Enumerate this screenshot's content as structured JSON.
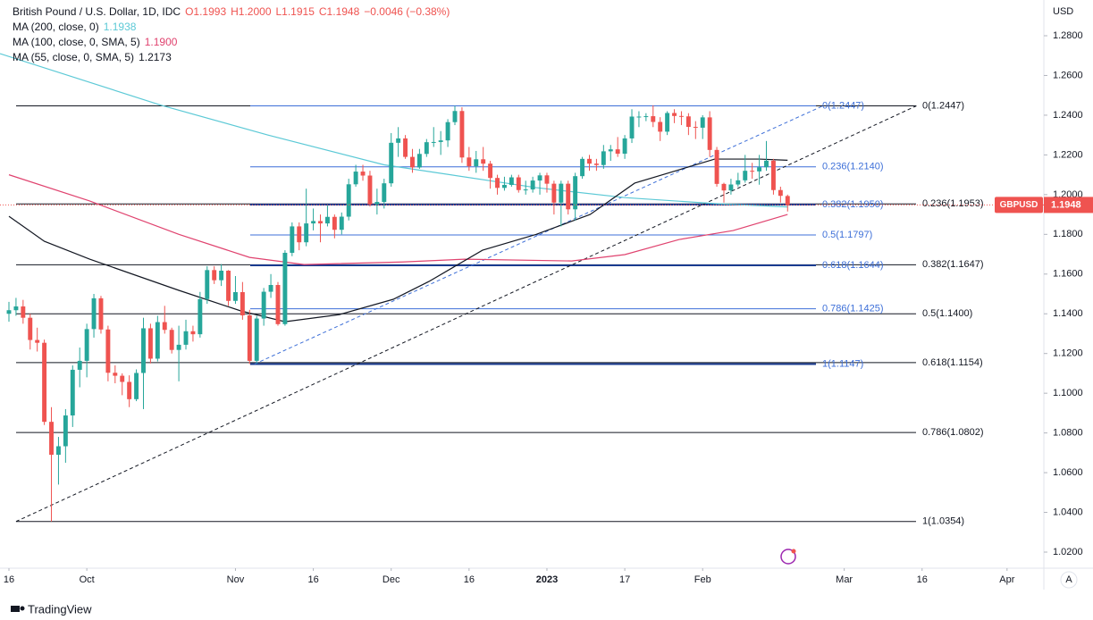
{
  "chart_data": {
    "type": "candlestick",
    "title": "British Pound / U.S. Dollar, 1D, IDC",
    "ohlc_header": [
      "O1.1993",
      "H1.2000",
      "L1.1915",
      "C1.1948",
      "−0.0046 (−0.38%)"
    ],
    "currency": "USD",
    "symbol": "GBPUSD",
    "last_price": 1.1948,
    "brand": "TradingView",
    "scale_button": "A",
    "up_color": "#26a69a",
    "down_color": "#ef5350",
    "xlim": [
      -1.2626,
      146.2
    ],
    "ylim": [
      1.0119,
      1.298
    ],
    "xticks": [
      {
        "value": 0,
        "label": "16"
      },
      {
        "value": 11,
        "label": "Oct"
      },
      {
        "value": 32,
        "label": "Nov"
      },
      {
        "value": 43,
        "label": "16"
      },
      {
        "value": 54,
        "label": "Dec"
      },
      {
        "value": 65,
        "label": "16"
      },
      {
        "value": 76,
        "label": "2023"
      },
      {
        "value": 87,
        "label": "17"
      },
      {
        "value": 98,
        "label": "Feb"
      },
      {
        "value": 118,
        "label": "Mar"
      },
      {
        "value": 129,
        "label": "16"
      },
      {
        "value": 141,
        "label": "Apr"
      }
    ],
    "yticks": [
      {
        "value": 1.28,
        "label": "1.2800"
      },
      {
        "value": 1.26,
        "label": "1.2600"
      },
      {
        "value": 1.24,
        "label": "1.2400"
      },
      {
        "value": 1.22,
        "label": "1.2200"
      },
      {
        "value": 1.2,
        "label": "1.2000"
      },
      {
        "value": 1.18,
        "label": "1.1800"
      },
      {
        "value": 1.16,
        "label": "1.1600"
      },
      {
        "value": 1.14,
        "label": "1.1400"
      },
      {
        "value": 1.12,
        "label": "1.1200"
      },
      {
        "value": 1.1,
        "label": "1.1000"
      },
      {
        "value": 1.08,
        "label": "1.0800"
      },
      {
        "value": 1.06,
        "label": "1.0600"
      },
      {
        "value": 1.04,
        "label": "1.0400"
      },
      {
        "value": 1.02,
        "label": "1.0200"
      }
    ],
    "open": [
      1.14,
      1.1418,
      1.1437,
      1.138,
      1.1268,
      1.1254,
      1.0856,
      1.069,
      1.0733,
      1.0888,
      1.1118,
      1.1163,
      1.1323,
      1.1478,
      1.1321,
      1.1103,
      1.1088,
      1.1057,
      1.097,
      1.1102,
      1.1327,
      1.1174,
      1.1358,
      1.1319,
      1.1218,
      1.1244,
      1.1312,
      1.1297,
      1.1474,
      1.162,
      1.1569,
      1.1617,
      1.1465,
      1.1509,
      1.1392,
      1.1163,
      1.1376,
      1.1511,
      1.1545,
      1.1348,
      1.1707,
      1.184,
      1.176,
      1.1855,
      1.1867,
      1.1855,
      1.1888,
      1.1823,
      1.1889,
      1.2052,
      1.2116,
      1.2096,
      1.1951,
      1.1963,
      1.2057,
      1.2261,
      1.2283,
      1.219,
      1.2137,
      1.2205,
      1.2264,
      1.2265,
      1.2273,
      1.2365,
      1.2421,
      1.2187,
      1.2143,
      1.2178,
      1.2156,
      1.2084,
      1.2034,
      1.2049,
      1.2087,
      1.2023,
      1.2026,
      1.2071,
      1.2097,
      1.2055,
      1.196,
      1.2055,
      1.1926,
      1.2093,
      1.218,
      1.2156,
      1.2149,
      1.2218,
      1.2228,
      1.2206,
      1.2283,
      1.2393,
      1.2393,
      1.2395,
      1.2366,
      1.2317,
      1.2411,
      1.2396,
      1.2394,
      1.2341,
      1.2337,
      1.2389,
      1.2225,
      1.2054,
      1.2021,
      1.2051,
      1.2072,
      1.212,
      1.2117,
      1.2138,
      1.2171,
      1.2023,
      1.1993
    ],
    "high": [
      1.146,
      1.148,
      1.147,
      1.14,
      1.133,
      1.127,
      1.093,
      1.078,
      1.092,
      1.114,
      1.123,
      1.135,
      1.15,
      1.149,
      1.134,
      1.114,
      1.11,
      1.109,
      1.112,
      1.138,
      1.135,
      1.139,
      1.144,
      1.133,
      1.134,
      1.137,
      1.134,
      1.151,
      1.164,
      1.164,
      1.165,
      1.162,
      1.159,
      1.156,
      1.142,
      1.139,
      1.153,
      1.16,
      1.156,
      1.172,
      1.186,
      1.186,
      1.203,
      1.193,
      1.19,
      1.195,
      1.19,
      1.191,
      1.208,
      1.215,
      1.215,
      1.212,
      1.203,
      1.208,
      1.231,
      1.234,
      1.23,
      1.223,
      1.223,
      1.228,
      1.234,
      1.232,
      1.238,
      1.2447,
      1.244,
      1.224,
      1.222,
      1.224,
      1.217,
      1.21,
      1.209,
      1.21,
      1.21,
      1.207,
      1.209,
      1.211,
      1.211,
      1.207,
      1.207,
      1.207,
      1.211,
      1.219,
      1.22,
      1.218,
      1.225,
      1.225,
      1.229,
      1.23,
      1.243,
      1.242,
      1.241,
      1.245,
      1.239,
      1.242,
      1.243,
      1.242,
      1.241,
      1.237,
      1.24,
      1.242,
      1.224,
      1.206,
      1.208,
      1.211,
      1.22,
      1.216,
      1.22,
      1.227,
      1.218,
      1.204,
      1.2
    ],
    "low": [
      1.136,
      1.139,
      1.135,
      1.122,
      1.121,
      1.084,
      1.0354,
      1.054,
      1.065,
      1.083,
      1.103,
      1.108,
      1.128,
      1.13,
      1.106,
      1.105,
      1.099,
      1.093,
      1.096,
      1.092,
      1.115,
      1.116,
      1.13,
      1.12,
      1.106,
      1.122,
      1.126,
      1.128,
      1.145,
      1.155,
      1.154,
      1.144,
      1.145,
      1.137,
      1.1147,
      1.115,
      1.134,
      1.148,
      1.134,
      1.134,
      1.169,
      1.172,
      1.174,
      1.182,
      1.176,
      1.184,
      1.178,
      1.18,
      1.187,
      1.204,
      1.207,
      1.194,
      1.19,
      1.193,
      1.204,
      1.219,
      1.218,
      1.211,
      1.213,
      1.219,
      1.224,
      1.22,
      1.224,
      1.235,
      1.216,
      1.212,
      1.211,
      1.212,
      1.203,
      1.2,
      1.202,
      1.204,
      1.201,
      1.2,
      1.201,
      1.2,
      1.201,
      1.19,
      1.184,
      1.19,
      1.187,
      1.208,
      1.212,
      1.212,
      1.213,
      1.217,
      1.219,
      1.218,
      1.226,
      1.234,
      1.237,
      1.234,
      1.227,
      1.23,
      1.236,
      1.235,
      1.23,
      1.228,
      1.228,
      1.219,
      1.204,
      1.196,
      1.2,
      1.204,
      1.206,
      1.208,
      1.205,
      1.212,
      1.2,
      1.196,
      1.1915
    ],
    "close": [
      1.1418,
      1.1437,
      1.138,
      1.1268,
      1.1254,
      1.0856,
      1.069,
      1.0733,
      1.0888,
      1.1118,
      1.1163,
      1.1323,
      1.1478,
      1.1321,
      1.1103,
      1.1088,
      1.1057,
      1.097,
      1.1102,
      1.1327,
      1.1174,
      1.1358,
      1.1319,
      1.1218,
      1.1244,
      1.1312,
      1.1297,
      1.1474,
      1.162,
      1.1569,
      1.1617,
      1.1465,
      1.1509,
      1.1392,
      1.1163,
      1.1376,
      1.1511,
      1.1545,
      1.1348,
      1.1707,
      1.184,
      1.176,
      1.1855,
      1.1867,
      1.1855,
      1.1888,
      1.1823,
      1.1889,
      1.2052,
      1.2116,
      1.2096,
      1.1951,
      1.1963,
      1.2057,
      1.2261,
      1.2283,
      1.219,
      1.2137,
      1.2205,
      1.2264,
      1.2265,
      1.2273,
      1.2365,
      1.2421,
      1.2187,
      1.2143,
      1.2178,
      1.2156,
      1.2084,
      1.2034,
      1.2049,
      1.2087,
      1.2023,
      1.2026,
      1.2071,
      1.2097,
      1.2055,
      1.196,
      1.2055,
      1.1926,
      1.2093,
      1.218,
      1.2156,
      1.2149,
      1.2218,
      1.2228,
      1.2206,
      1.2283,
      1.2393,
      1.2393,
      1.2395,
      1.2366,
      1.2317,
      1.2411,
      1.2396,
      1.2394,
      1.2341,
      1.2337,
      1.2389,
      1.2225,
      1.2054,
      1.2021,
      1.2051,
      1.2072,
      1.212,
      1.2117,
      1.2138,
      1.2171,
      1.2023,
      1.1994,
      1.1948
    ],
    "series": [
      {
        "name": "MA (200, close, 0)",
        "value_label": "1.1938",
        "color": "#5cc9d6",
        "x": [
          -1.26,
          21.5,
          36.6,
          53,
          74.5,
          87,
          99.7,
          110
        ],
        "values": [
          1.271,
          1.245,
          1.23,
          1.215,
          1.2035,
          1.1985,
          1.1955,
          1.1938
        ]
      },
      {
        "name": "MA (100, close, 0, SMA, 5)",
        "value_label": "1.1900",
        "color": "#e0436f",
        "x": [
          0,
          11.4,
          24,
          34,
          41.7,
          55.6,
          64.4,
          79.5,
          87,
          94.7,
          102.3,
          110
        ],
        "values": [
          1.21,
          1.1968,
          1.18,
          1.1684,
          1.1648,
          1.1661,
          1.1675,
          1.1666,
          1.1698,
          1.1774,
          1.1819,
          1.19
        ]
      },
      {
        "name": "MA (55, close, 0, SMA, 5)",
        "value_label": "1.2173",
        "color": "#131722",
        "x": [
          0,
          5,
          11.4,
          24,
          32.8,
          39,
          46.7,
          54.3,
          59.3,
          66.9,
          74.5,
          82.1,
          88.4,
          99.7,
          106,
          110
        ],
        "values": [
          1.1891,
          1.1765,
          1.1675,
          1.1518,
          1.1414,
          1.136,
          1.1396,
          1.1473,
          1.1562,
          1.172,
          1.18,
          1.19,
          1.2058,
          1.2179,
          1.2179,
          1.2173
        ]
      }
    ],
    "fib_black": [
      {
        "value": 1.2447,
        "label": "0(1.2447)"
      },
      {
        "value": 1.1953,
        "label": "0.236(1.1953)"
      },
      {
        "value": 1.1647,
        "label": "0.382(1.1647)"
      },
      {
        "value": 1.14,
        "label": "0.5(1.1400)"
      },
      {
        "value": 1.1154,
        "label": "0.618(1.1154)"
      },
      {
        "value": 1.0802,
        "label": "0.786(1.0802)"
      },
      {
        "value": 1.0354,
        "label": "1(1.0354)"
      }
    ],
    "fib_blue": [
      {
        "value": 1.2447,
        "label": "0(1.2447)"
      },
      {
        "value": 1.214,
        "label": "0.236(1.2140)"
      },
      {
        "value": 1.195,
        "label": "0.382(1.1950)"
      },
      {
        "value": 1.1797,
        "label": "0.5(1.1797)"
      },
      {
        "value": 1.1644,
        "label": "0.618(1.1644)"
      },
      {
        "value": 1.1425,
        "label": "0.786(1.1425)"
      },
      {
        "value": 1.1147,
        "label": "1(1.1147)"
      }
    ],
    "trend_lines": [
      {
        "color": "#131722",
        "x": [
          1,
          128.2
        ],
        "values": [
          1.0354,
          1.2447
        ]
      },
      {
        "color": "#3d6fd8",
        "x": [
          34.7,
          115
        ],
        "values": [
          1.1147,
          1.2447
        ]
      }
    ]
  }
}
